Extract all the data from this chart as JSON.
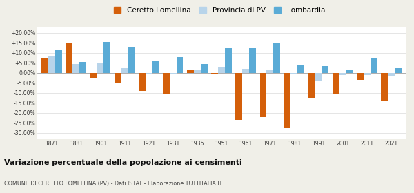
{
  "years": [
    1871,
    1881,
    1901,
    1911,
    1921,
    1931,
    1936,
    1951,
    1961,
    1971,
    1981,
    1991,
    2001,
    2011,
    2021
  ],
  "ceretto": [
    7.5,
    15.0,
    -2.5,
    -5.0,
    -9.0,
    -10.5,
    1.5,
    -0.5,
    -23.5,
    -22.0,
    -27.5,
    -12.5,
    -10.5,
    -3.5,
    -14.0
  ],
  "provincia": [
    8.5,
    4.5,
    5.0,
    2.5,
    -0.5,
    -0.5,
    1.5,
    3.0,
    2.0,
    1.5,
    -0.5,
    -4.0,
    -1.0,
    -1.0,
    -1.5
  ],
  "lombardia": [
    11.5,
    5.5,
    15.5,
    13.0,
    6.0,
    8.0,
    4.5,
    12.5,
    12.5,
    15.0,
    4.0,
    3.5,
    1.5,
    7.5,
    2.5
  ],
  "ceretto_color": "#d45f0a",
  "provincia_color": "#b8d4ea",
  "lombardia_color": "#5aabd6",
  "title": "Variazione percentuale della popolazione ai censimenti",
  "subtitle": "COMUNE DI CERETTO LOMELLINA (PV) - Dati ISTAT - Elaborazione TUTTITALIA.IT",
  "legend_labels": [
    "Ceretto Lomellina",
    "Provincia di PV",
    "Lombardia"
  ],
  "yticks": [
    -30,
    -25,
    -20,
    -15,
    -10,
    -5,
    0,
    5,
    10,
    15,
    20
  ],
  "ylim": [
    -33,
    23
  ],
  "bg_color": "#f0efe8",
  "plot_bg": "#ffffff",
  "grid_color": "#e0e0e0"
}
